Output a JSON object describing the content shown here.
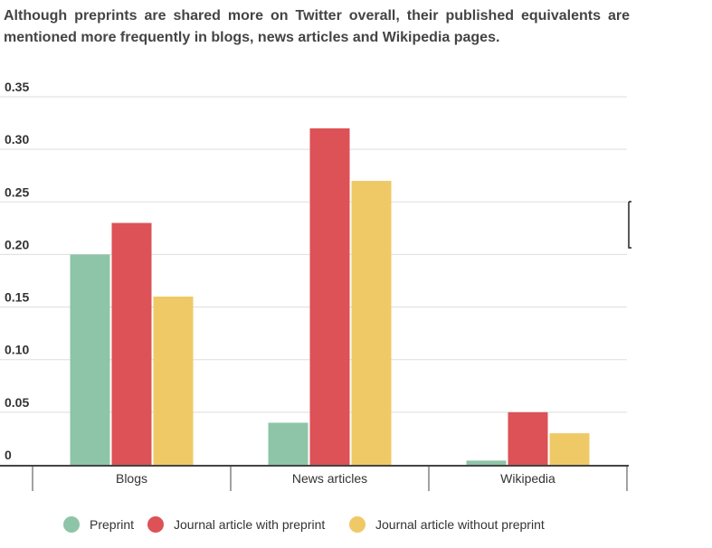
{
  "title": "Although preprints are shared more on Twitter overall, their published equivalents are mentioned more frequently in blogs, news articles and Wikipedia pages.",
  "chart_data": {
    "type": "bar",
    "title": "Although preprints are shared more on Twitter overall, their published equivalents are mentioned more frequently in blogs, news articles and Wikipedia pages.",
    "categories": [
      "Blogs",
      "News articles",
      "Wikipedia"
    ],
    "series": [
      {
        "name": "Preprint",
        "color": "#8ec4a8",
        "values": [
          0.2,
          0.04,
          0.004
        ]
      },
      {
        "name": "Journal article with preprint",
        "color": "#dc5256",
        "values": [
          0.23,
          0.32,
          0.05
        ]
      },
      {
        "name": "Journal article without preprint",
        "color": "#efc966",
        "values": [
          0.16,
          0.27,
          0.03
        ]
      }
    ],
    "yticks": [
      "0",
      "0.05",
      "0.10",
      "0.15",
      "0.20",
      "0.25",
      "0.30",
      "0.35"
    ],
    "ylim": [
      0,
      0.35
    ],
    "xlabel": "",
    "ylabel": "",
    "grid": true,
    "legend": "bottom"
  }
}
